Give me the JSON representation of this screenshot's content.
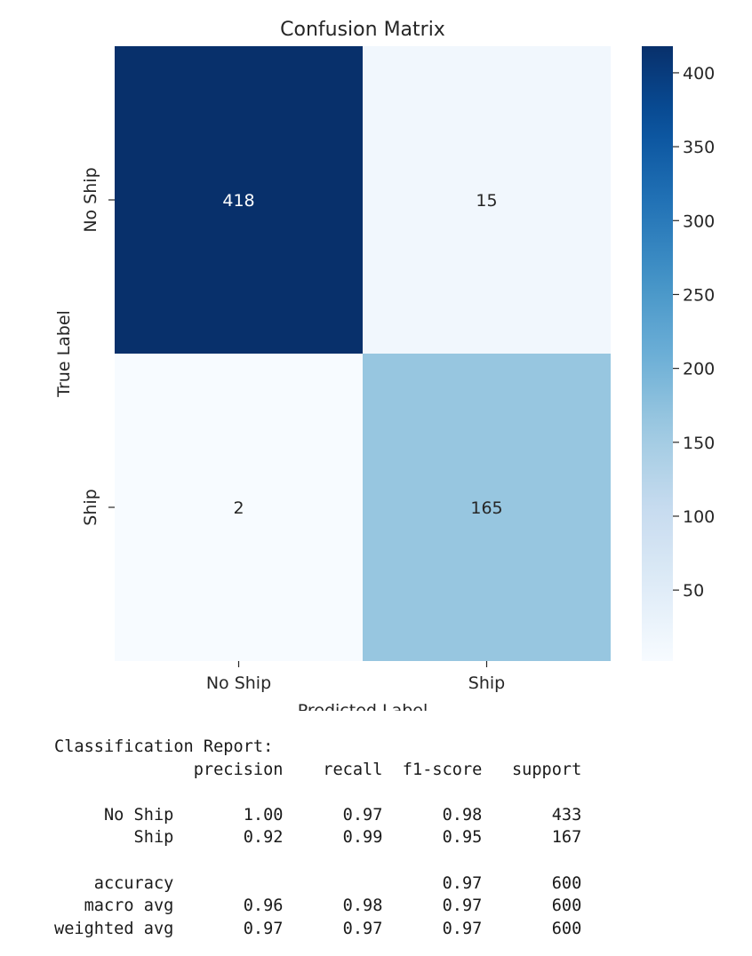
{
  "chart_data": {
    "type": "heatmap",
    "title": "Confusion Matrix",
    "xlabel": "Predicted Label",
    "ylabel": "True Label",
    "x_categories": [
      "No Ship",
      "Ship"
    ],
    "y_categories": [
      "No Ship",
      "Ship"
    ],
    "values": [
      [
        418,
        15
      ],
      [
        2,
        165
      ]
    ],
    "colormap": "Blues",
    "color_range": [
      2,
      418
    ],
    "colorbar_ticks": [
      50,
      100,
      150,
      200,
      250,
      300,
      350,
      400
    ],
    "colorbar_labels": [
      "50",
      "100",
      "150",
      "200",
      "250",
      "300",
      "350",
      "400"
    ]
  },
  "report": {
    "heading": "Classification Report:",
    "columns": [
      "precision",
      "recall",
      "f1-score",
      "support"
    ],
    "class_rows": [
      {
        "label": "No Ship",
        "precision": "1.00",
        "recall": "0.97",
        "f1": "0.98",
        "support": "433"
      },
      {
        "label": "Ship",
        "precision": "0.92",
        "recall": "0.99",
        "f1": "0.95",
        "support": "167"
      }
    ],
    "summary_rows": [
      {
        "label": "accuracy",
        "precision": "",
        "recall": "",
        "f1": "0.97",
        "support": "600"
      },
      {
        "label": "macro avg",
        "precision": "0.96",
        "recall": "0.98",
        "f1": "0.97",
        "support": "600"
      },
      {
        "label": "weighted avg",
        "precision": "0.97",
        "recall": "0.97",
        "f1": "0.97",
        "support": "600"
      }
    ]
  }
}
